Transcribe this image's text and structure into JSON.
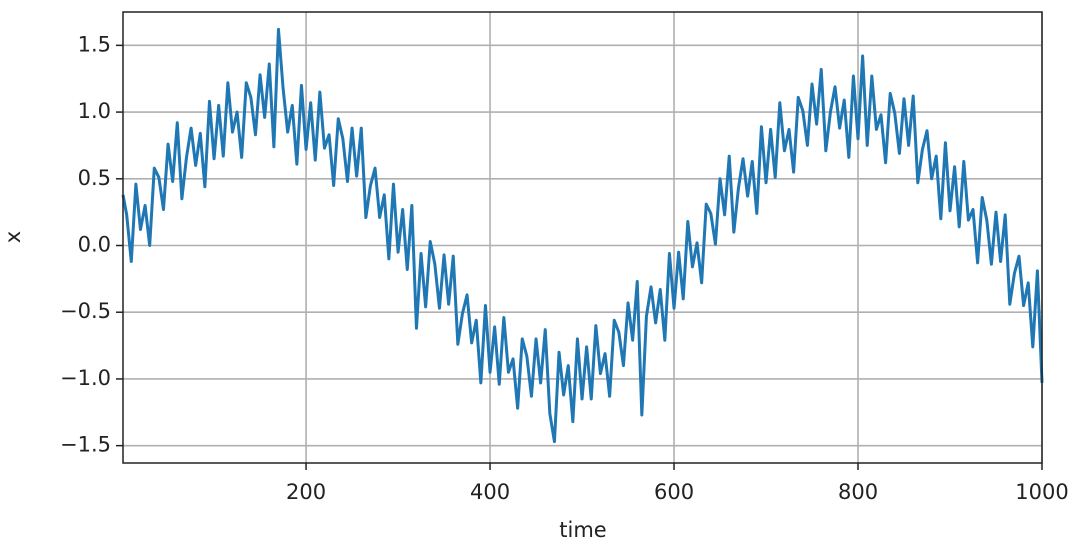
{
  "chart_data": {
    "type": "line",
    "xlabel": "time",
    "ylabel": "x",
    "color": "#1f77b4",
    "grid": true,
    "xlim": [
      1,
      1000
    ],
    "ylim": [
      -1.63,
      1.75
    ],
    "xticks": [
      200,
      400,
      600,
      800,
      1000
    ],
    "yticks": [
      {
        "value": -1.5,
        "label": "−1.5"
      },
      {
        "value": -1.0,
        "label": "−1.0"
      },
      {
        "value": -0.5,
        "label": "−0.5"
      },
      {
        "value": 0.0,
        "label": "0.0"
      },
      0.5,
      {
        "value": 1.0,
        "label": "1.0"
      },
      1.5
    ],
    "x": [
      1,
      5,
      10,
      15,
      20,
      25,
      30,
      35,
      40,
      45,
      50,
      55,
      60,
      65,
      70,
      75,
      80,
      85,
      90,
      95,
      100,
      105,
      110,
      115,
      120,
      125,
      130,
      135,
      140,
      145,
      150,
      155,
      160,
      165,
      170,
      175,
      180,
      185,
      190,
      195,
      200,
      205,
      210,
      215,
      220,
      225,
      230,
      235,
      240,
      245,
      250,
      255,
      260,
      265,
      270,
      275,
      280,
      285,
      290,
      295,
      300,
      305,
      310,
      315,
      320,
      325,
      330,
      335,
      340,
      345,
      350,
      355,
      360,
      365,
      370,
      375,
      380,
      385,
      390,
      395,
      400,
      405,
      410,
      415,
      420,
      425,
      430,
      435,
      440,
      445,
      450,
      455,
      460,
      465,
      470,
      475,
      480,
      485,
      490,
      495,
      500,
      505,
      510,
      515,
      520,
      525,
      530,
      535,
      540,
      545,
      550,
      555,
      560,
      565,
      570,
      575,
      580,
      585,
      590,
      595,
      600,
      605,
      610,
      615,
      620,
      625,
      630,
      635,
      640,
      645,
      650,
      655,
      660,
      665,
      670,
      675,
      680,
      685,
      690,
      695,
      700,
      705,
      710,
      715,
      720,
      725,
      730,
      735,
      740,
      745,
      750,
      755,
      760,
      765,
      770,
      775,
      780,
      785,
      790,
      795,
      800,
      805,
      810,
      815,
      820,
      825,
      830,
      835,
      840,
      845,
      850,
      855,
      860,
      865,
      870,
      875,
      880,
      885,
      890,
      895,
      900,
      905,
      910,
      915,
      920,
      925,
      930,
      935,
      940,
      945,
      950,
      955,
      960,
      965,
      970,
      975,
      980,
      985,
      990,
      995,
      1000
    ],
    "values": [
      0.38,
      0.23,
      -0.12,
      0.46,
      0.12,
      0.3,
      0.0,
      0.58,
      0.51,
      0.27,
      0.76,
      0.48,
      0.92,
      0.35,
      0.66,
      0.88,
      0.6,
      0.84,
      0.44,
      1.08,
      0.65,
      1.05,
      0.67,
      1.22,
      0.85,
      1.0,
      0.66,
      1.22,
      1.11,
      0.83,
      1.28,
      0.96,
      1.36,
      0.74,
      1.62,
      1.18,
      0.85,
      1.05,
      0.61,
      1.2,
      0.72,
      1.07,
      0.64,
      1.15,
      0.73,
      0.83,
      0.45,
      0.95,
      0.8,
      0.48,
      0.88,
      0.52,
      0.88,
      0.21,
      0.45,
      0.58,
      0.21,
      0.38,
      -0.1,
      0.46,
      -0.05,
      0.27,
      -0.18,
      0.3,
      -0.62,
      -0.06,
      -0.46,
      0.03,
      -0.14,
      -0.47,
      -0.07,
      -0.44,
      -0.08,
      -0.74,
      -0.51,
      -0.37,
      -0.73,
      -0.56,
      -1.03,
      -0.45,
      -0.95,
      -0.61,
      -1.04,
      -0.54,
      -0.95,
      -0.85,
      -1.22,
      -0.7,
      -0.83,
      -1.13,
      -0.7,
      -1.03,
      -0.63,
      -1.26,
      -1.47,
      -0.8,
      -1.12,
      -0.9,
      -1.32,
      -0.7,
      -1.15,
      -0.76,
      -1.15,
      -0.6,
      -0.96,
      -0.81,
      -1.13,
      -0.56,
      -0.65,
      -0.9,
      -0.43,
      -0.71,
      -0.27,
      -1.27,
      -0.53,
      -0.31,
      -0.58,
      -0.33,
      -0.71,
      -0.06,
      -0.47,
      -0.05,
      -0.4,
      0.18,
      -0.16,
      0.02,
      -0.28,
      0.31,
      0.24,
      0.01,
      0.5,
      0.23,
      0.67,
      0.1,
      0.43,
      0.65,
      0.37,
      0.63,
      0.24,
      0.89,
      0.47,
      0.87,
      0.51,
      1.07,
      0.71,
      0.87,
      0.55,
      1.11,
      1.01,
      0.75,
      1.21,
      0.91,
      1.32,
      0.71,
      1.0,
      1.19,
      0.88,
      1.09,
      0.66,
      1.27,
      0.8,
      1.42,
      0.75,
      1.27,
      0.87,
      0.98,
      0.62,
      1.14,
      0.99,
      0.69,
      1.1,
      0.75,
      1.12,
      0.47,
      0.72,
      0.86,
      0.5,
      0.67,
      0.2,
      0.77,
      0.26,
      0.59,
      0.14,
      0.63,
      0.19,
      0.27,
      -0.13,
      0.36,
      0.19,
      -0.14,
      0.25,
      -0.12,
      0.23,
      -0.44,
      -0.21,
      -0.08,
      -0.45,
      -0.28,
      -0.76,
      -0.19,
      -1.03
    ]
  }
}
